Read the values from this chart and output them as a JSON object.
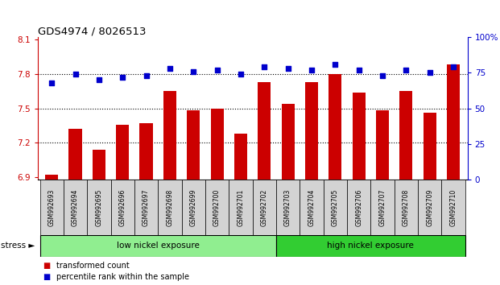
{
  "title": "GDS4974 / 8026513",
  "categories": [
    "GSM992693",
    "GSM992694",
    "GSM992695",
    "GSM992696",
    "GSM992697",
    "GSM992698",
    "GSM992699",
    "GSM992700",
    "GSM992701",
    "GSM992702",
    "GSM992703",
    "GSM992704",
    "GSM992705",
    "GSM992706",
    "GSM992707",
    "GSM992708",
    "GSM992709",
    "GSM992710"
  ],
  "bar_values": [
    6.92,
    7.32,
    7.14,
    7.36,
    7.37,
    7.65,
    7.48,
    7.5,
    7.28,
    7.73,
    7.54,
    7.73,
    7.8,
    7.64,
    7.48,
    7.65,
    7.46,
    7.88
  ],
  "dot_values": [
    68,
    74,
    70,
    72,
    73,
    78,
    76,
    77,
    74,
    79,
    78,
    77,
    81,
    77,
    73,
    77,
    75,
    79
  ],
  "bar_color": "#cc0000",
  "dot_color": "#0000cc",
  "ylim_left": [
    6.88,
    8.12
  ],
  "ylim_right": [
    0,
    100
  ],
  "yticks_left": [
    6.9,
    7.2,
    7.5,
    7.8,
    8.1
  ],
  "yticks_right": [
    0,
    25,
    50,
    75,
    100
  ],
  "ytick_labels_right": [
    "0",
    "25",
    "50",
    "75",
    "100%"
  ],
  "group1_label": "low nickel exposure",
  "group1_range": [
    0,
    9
  ],
  "group2_label": "high nickel exposure",
  "group2_range": [
    10,
    17
  ],
  "group_label_name": "stress",
  "legend_bar": "transformed count",
  "legend_dot": "percentile rank within the sample",
  "group1_color": "#90ee90",
  "group2_color": "#32cd32",
  "xlabel_area_color": "#d3d3d3",
  "dotted_line_values": [
    7.2,
    7.5,
    7.8
  ],
  "bar_bottom": 6.88
}
